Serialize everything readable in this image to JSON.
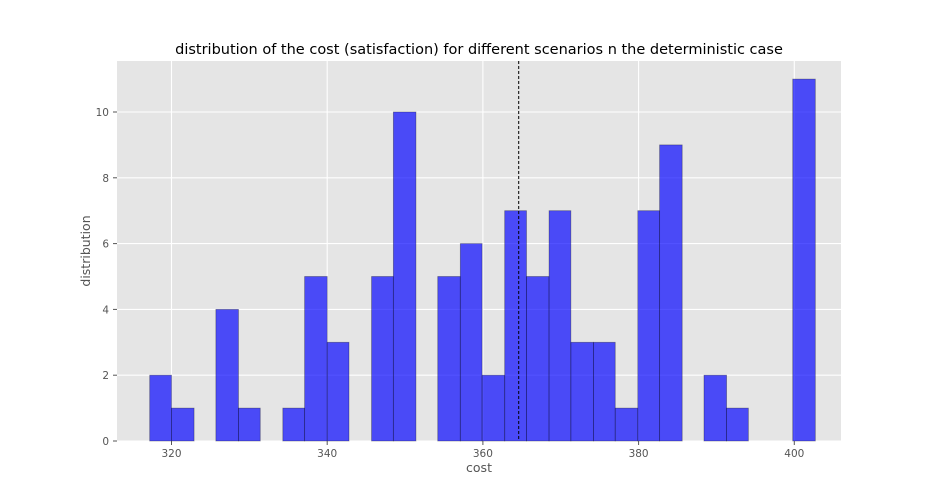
{
  "chart_data": {
    "type": "bar",
    "title": "distribution of the cost (satisfaction) for different scenarios n the deterministic case",
    "xlabel": "cost",
    "ylabel": "distribution",
    "xlim": [
      313.0,
      406.0
    ],
    "ylim": [
      0,
      11.55
    ],
    "x_ticks": [
      320,
      340,
      360,
      380,
      400
    ],
    "y_ticks": [
      0,
      2,
      4,
      6,
      8,
      10
    ],
    "grid": true,
    "bar_color": "#0000ff",
    "background_color": "#e5e5e5",
    "reference_line": {
      "x": 364.6,
      "style": "dashed"
    },
    "bins": [
      {
        "x0": 317.2,
        "x1": 320.0,
        "count": 2
      },
      {
        "x0": 320.0,
        "x1": 322.9,
        "count": 1
      },
      {
        "x0": 322.9,
        "x1": 325.7,
        "count": 0
      },
      {
        "x0": 325.7,
        "x1": 328.6,
        "count": 4
      },
      {
        "x0": 328.6,
        "x1": 331.4,
        "count": 1
      },
      {
        "x0": 331.4,
        "x1": 334.3,
        "count": 0
      },
      {
        "x0": 334.3,
        "x1": 337.1,
        "count": 1
      },
      {
        "x0": 337.1,
        "x1": 340.0,
        "count": 5
      },
      {
        "x0": 340.0,
        "x1": 342.8,
        "count": 3
      },
      {
        "x0": 342.8,
        "x1": 345.7,
        "count": 0
      },
      {
        "x0": 345.7,
        "x1": 348.5,
        "count": 5
      },
      {
        "x0": 348.5,
        "x1": 351.4,
        "count": 10
      },
      {
        "x0": 351.4,
        "x1": 354.2,
        "count": 0
      },
      {
        "x0": 354.2,
        "x1": 357.1,
        "count": 5
      },
      {
        "x0": 357.1,
        "x1": 359.9,
        "count": 6
      },
      {
        "x0": 359.9,
        "x1": 362.8,
        "count": 2
      },
      {
        "x0": 362.8,
        "x1": 365.6,
        "count": 7
      },
      {
        "x0": 365.6,
        "x1": 368.5,
        "count": 5
      },
      {
        "x0": 368.5,
        "x1": 371.3,
        "count": 7
      },
      {
        "x0": 371.3,
        "x1": 374.2,
        "count": 3
      },
      {
        "x0": 374.2,
        "x1": 377.0,
        "count": 3
      },
      {
        "x0": 377.0,
        "x1": 379.9,
        "count": 1
      },
      {
        "x0": 379.9,
        "x1": 382.7,
        "count": 7
      },
      {
        "x0": 382.7,
        "x1": 385.6,
        "count": 9
      },
      {
        "x0": 385.6,
        "x1": 388.4,
        "count": 0
      },
      {
        "x0": 388.4,
        "x1": 391.3,
        "count": 2
      },
      {
        "x0": 391.3,
        "x1": 394.1,
        "count": 1
      },
      {
        "x0": 394.1,
        "x1": 397.0,
        "count": 0
      },
      {
        "x0": 397.0,
        "x1": 399.8,
        "count": 0
      },
      {
        "x0": 399.8,
        "x1": 402.7,
        "count": 11
      }
    ]
  }
}
